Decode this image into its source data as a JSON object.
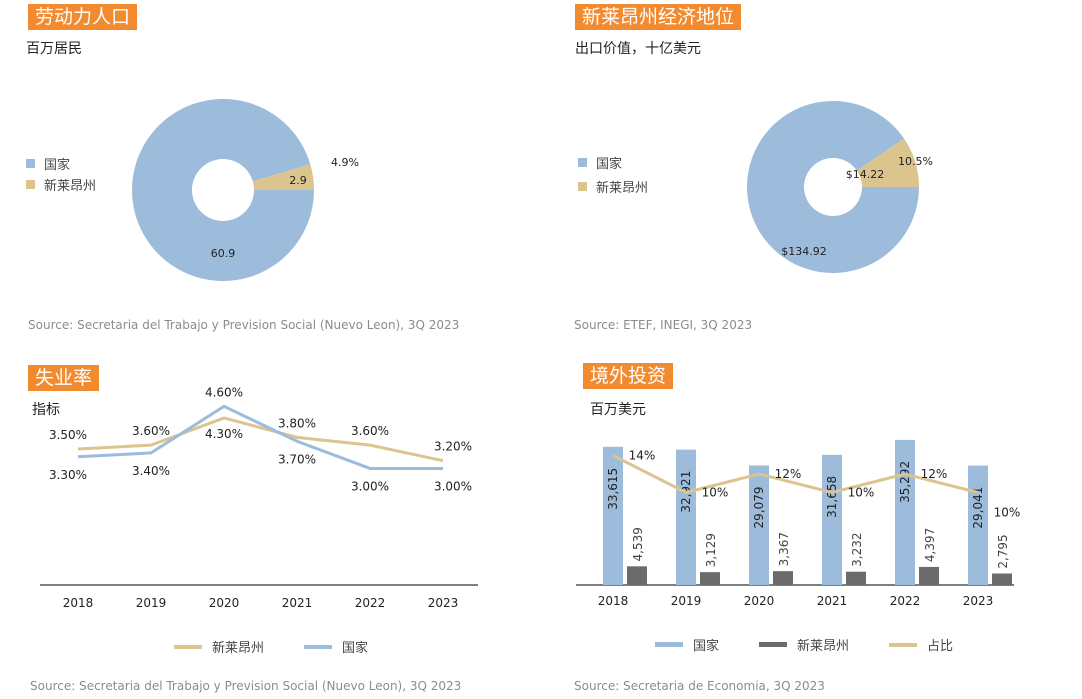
{
  "colors": {
    "country": "#9dbcdc",
    "nl": "#dcc48f",
    "share": "#dcc48f",
    "nl_bar": "#6b6b6b",
    "accent": "#f28b30",
    "axis": "#555555"
  },
  "labor": {
    "title": "劳动力人口",
    "subtitle": "百万居民",
    "legend": [
      "国家",
      "新莱昂州"
    ],
    "source": "Source: Secretaria del Trabajo y Prevision Social (Nuevo Leon), 3Q 2023",
    "chart_data": {
      "type": "pie",
      "labels": [
        "国家",
        "新莱昂州"
      ],
      "values": [
        60.9,
        2.9
      ],
      "value_labels": [
        "60.9",
        "2.9"
      ],
      "share_label": "4.9%"
    }
  },
  "econ": {
    "title": "新莱昂州经济地位",
    "subtitle": "出口价值，十亿美元",
    "legend": [
      "国家",
      "新莱昂州"
    ],
    "source": "Source: ETEF, INEGI, 3Q 2023",
    "chart_data": {
      "type": "pie",
      "labels": [
        "国家",
        "新莱昂州"
      ],
      "values": [
        134.92,
        14.22
      ],
      "value_labels": [
        "$134.92",
        "$14.22"
      ],
      "share_label": "10.5%"
    }
  },
  "unemp": {
    "title": "失业率",
    "subtitle": "指标",
    "legend": [
      "新莱昂州",
      "国家"
    ],
    "source": "Source: Secretaria del Trabajo y  Prevision Social (Nuevo Leon), 3Q  2023",
    "chart_data": {
      "type": "line",
      "categories": [
        "2018",
        "2019",
        "2020",
        "2021",
        "2022",
        "2023"
      ],
      "series": [
        {
          "name": "新莱昂州",
          "values": [
            3.5,
            3.6,
            4.3,
            3.8,
            3.6,
            3.2
          ],
          "labels": [
            "3.50%",
            "3.60%",
            "4.30%",
            "3.80%",
            "3.60%",
            "3.20%"
          ]
        },
        {
          "name": "国家",
          "values": [
            3.3,
            3.4,
            4.6,
            3.7,
            3.0,
            3.0
          ],
          "labels": [
            "3.30%",
            "3.40%",
            "4.60%",
            "3.70%",
            "3.00%",
            "3.00%"
          ]
        }
      ],
      "ylim": [
        0,
        5.2
      ]
    }
  },
  "fdi": {
    "title": "境外投资",
    "subtitle": "百万美元",
    "legend": [
      "国家",
      "新莱昂州",
      "占比"
    ],
    "source": "Source: Secretaria de Economia, 3Q 2023",
    "chart_data": {
      "type": "bar",
      "categories": [
        "2018",
        "2019",
        "2020",
        "2021",
        "2022",
        "2023"
      ],
      "series": [
        {
          "name": "国家",
          "values": [
            33615,
            32921,
            29079,
            31658,
            35292,
            29041
          ],
          "labels": [
            "33,615",
            "32,921",
            "29,079",
            "31,658",
            "35,292",
            "29,041"
          ]
        },
        {
          "name": "新莱昂州",
          "values": [
            4539,
            3129,
            3367,
            3232,
            4397,
            2795
          ],
          "labels": [
            "4,539",
            "3,129",
            "3,367",
            "3,232",
            "4,397",
            "2,795"
          ]
        },
        {
          "name": "占比",
          "values": [
            14,
            10,
            12,
            10,
            12,
            10
          ],
          "labels": [
            "14%",
            "10%",
            "12%",
            "10%",
            "12%",
            "10%"
          ]
        }
      ],
      "ylim": [
        0,
        36000
      ],
      "share_lim": [
        0,
        16
      ]
    }
  }
}
